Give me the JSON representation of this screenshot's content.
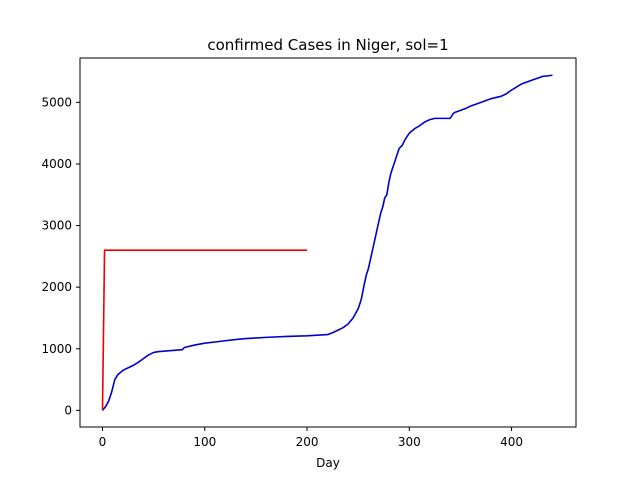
{
  "chart_data": {
    "type": "line",
    "title": "confirmed Cases in Niger, sol=1",
    "xlabel": "Day",
    "ylabel": "",
    "xlim": [
      -22,
      463
    ],
    "ylim": [
      -270,
      5720
    ],
    "x_ticks": [
      0,
      100,
      200,
      300,
      400
    ],
    "y_ticks": [
      0,
      1000,
      2000,
      3000,
      4000,
      5000
    ],
    "grid": false,
    "series": [
      {
        "color": "#0000cd",
        "x": [
          0,
          3,
          6,
          9,
          12,
          15,
          20,
          25,
          30,
          35,
          40,
          45,
          50,
          55,
          60,
          70,
          78,
          80,
          90,
          100,
          110,
          120,
          130,
          140,
          160,
          180,
          200,
          220,
          225,
          230,
          235,
          240,
          245,
          250,
          253,
          256,
          258,
          260,
          262,
          264,
          266,
          268,
          270,
          272,
          274,
          276,
          278,
          280,
          282,
          285,
          288,
          290,
          293,
          296,
          300,
          305,
          310,
          315,
          320,
          325,
          330,
          335,
          340,
          343,
          345,
          350,
          355,
          360,
          365,
          370,
          375,
          380,
          385,
          390,
          395,
          400,
          405,
          410,
          415,
          420,
          425,
          430,
          435,
          440
        ],
        "y": [
          0,
          60,
          150,
          300,
          500,
          580,
          650,
          690,
          730,
          780,
          840,
          900,
          940,
          955,
          960,
          975,
          985,
          1020,
          1060,
          1090,
          1110,
          1130,
          1150,
          1165,
          1185,
          1200,
          1210,
          1230,
          1260,
          1300,
          1340,
          1400,
          1500,
          1650,
          1800,
          2050,
          2200,
          2300,
          2450,
          2600,
          2750,
          2900,
          3050,
          3200,
          3300,
          3450,
          3500,
          3700,
          3850,
          4000,
          4150,
          4250,
          4300,
          4400,
          4500,
          4570,
          4620,
          4680,
          4720,
          4740,
          4740,
          4740,
          4740,
          4820,
          4840,
          4870,
          4900,
          4940,
          4970,
          5000,
          5030,
          5060,
          5080,
          5100,
          5140,
          5200,
          5250,
          5300,
          5330,
          5360,
          5390,
          5420,
          5430,
          5440
        ]
      },
      {
        "color": "#ee0000",
        "x": [
          0,
          2,
          200
        ],
        "y": [
          0,
          2600,
          2600
        ]
      }
    ]
  }
}
